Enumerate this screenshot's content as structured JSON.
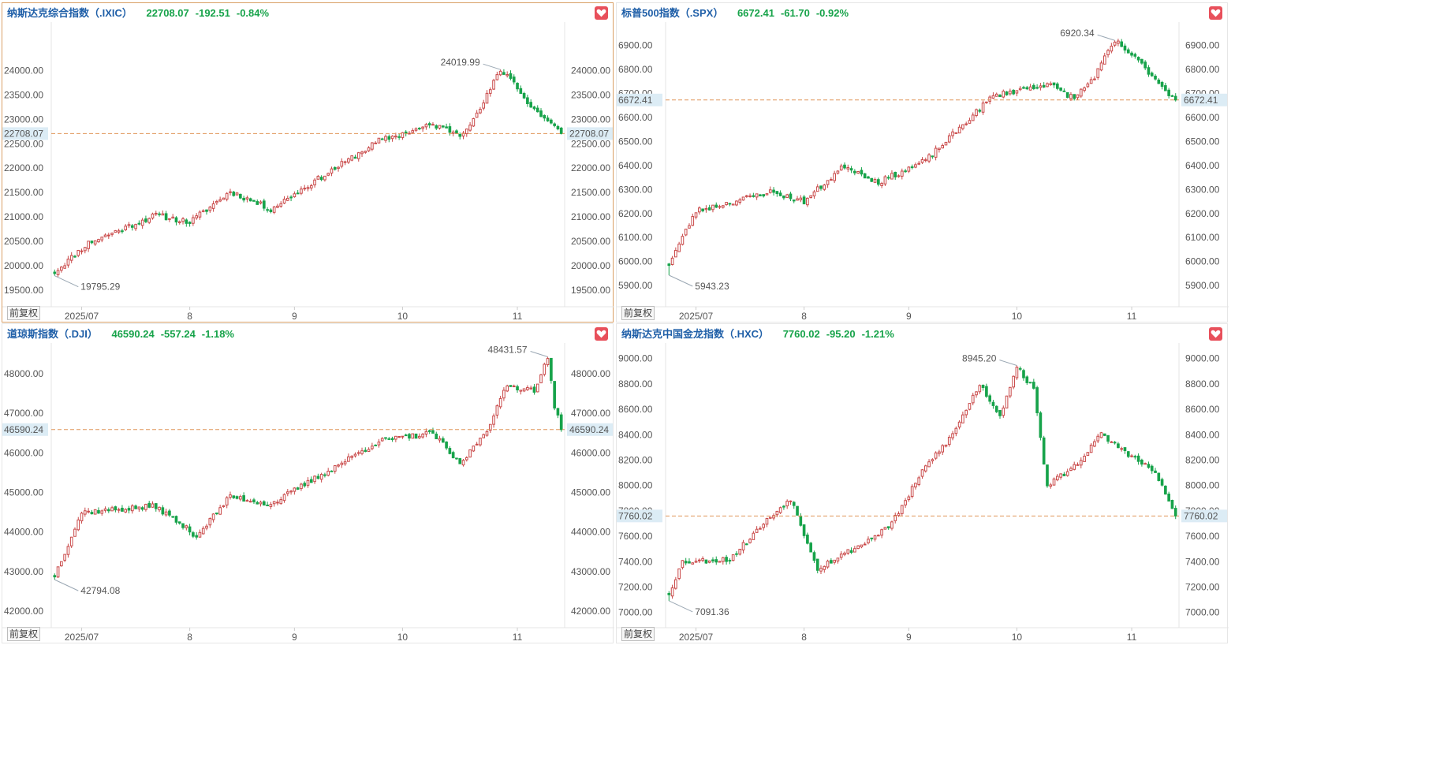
{
  "labels": {
    "restore_button": "前复权"
  },
  "colors": {
    "up": "#c94848",
    "down": "#17a34a",
    "header_name": "#1f5fa8",
    "header_values": "#17a34a",
    "last_line": "#e0965a",
    "last_tag_bg": "#dcecf5",
    "heart": "#e8505b"
  },
  "chart_data": [
    {
      "type": "candlestick",
      "name": "纳斯达克综合指数（.IXIC）",
      "last": "22708.07",
      "change": "-192.51",
      "change_pct": "-0.84%",
      "yticks": [
        "24000.00",
        "23500.00",
        "23000.00",
        "22500.00",
        "22000.00",
        "21500.00",
        "21000.00",
        "20500.00",
        "20000.00",
        "19500.00"
      ],
      "ylim": [
        19160,
        24960
      ],
      "xticks": [
        "2025/07",
        "8",
        "9",
        "10",
        "11"
      ],
      "xtick_idx": [
        8,
        40,
        71,
        103,
        137
      ],
      "high_label": "24019.99",
      "low_label": "19795.29",
      "start": 19870,
      "high": 24019.99,
      "low": 19795.29,
      "high_idx": 132,
      "low_idx": 0,
      "close": 22708.07,
      "waypoints": [
        [
          0,
          19870
        ],
        [
          10,
          20470
        ],
        [
          30,
          21040
        ],
        [
          40,
          20890
        ],
        [
          52,
          21520
        ],
        [
          64,
          21160
        ],
        [
          76,
          21690
        ],
        [
          96,
          22560
        ],
        [
          112,
          22890
        ],
        [
          120,
          22700
        ],
        [
          125,
          23080
        ],
        [
          132,
          24019.99
        ],
        [
          136,
          23780
        ],
        [
          140,
          23320
        ],
        [
          148,
          22850
        ],
        [
          150,
          22708.07
        ]
      ],
      "seed": 11
    },
    {
      "type": "candlestick",
      "name": "标普500指数（.SPX）",
      "last": "6672.41",
      "change": "-61.70",
      "change_pct": "-0.92%",
      "yticks": [
        "6900.00",
        "6800.00",
        "6700.00",
        "6600.00",
        "6500.00",
        "6400.00",
        "6300.00",
        "6200.00",
        "6100.00",
        "6000.00",
        "5900.00"
      ],
      "ylim": [
        5812,
        6990
      ],
      "xticks": [
        "2025/07",
        "8",
        "9",
        "10",
        "11"
      ],
      "xtick_idx": [
        8,
        40,
        71,
        103,
        137
      ],
      "high_label": "6920.34",
      "low_label": "5943.23",
      "start": 5990,
      "high": 6920.34,
      "low": 5943.23,
      "high_idx": 132,
      "low_idx": 0,
      "close": 6672.41,
      "waypoints": [
        [
          0,
          5990
        ],
        [
          8,
          6210
        ],
        [
          30,
          6290
        ],
        [
          40,
          6250
        ],
        [
          52,
          6400
        ],
        [
          62,
          6330
        ],
        [
          76,
          6420
        ],
        [
          96,
          6690
        ],
        [
          112,
          6740
        ],
        [
          120,
          6680
        ],
        [
          126,
          6770
        ],
        [
          132,
          6920.34
        ],
        [
          140,
          6820
        ],
        [
          148,
          6700
        ],
        [
          150,
          6672.41
        ]
      ],
      "seed": 23
    },
    {
      "type": "candlestick",
      "name": "道琼斯指数（.DJI）",
      "last": "46590.24",
      "change": "-557.24",
      "change_pct": "-1.18%",
      "yticks": [
        "48000.00",
        "47000.00",
        "46000.00",
        "45000.00",
        "44000.00",
        "43000.00",
        "42000.00"
      ],
      "ylim": [
        41580,
        48740
      ],
      "xticks": [
        "2025/07",
        "8",
        "9",
        "10",
        "11"
      ],
      "xtick_idx": [
        8,
        40,
        71,
        103,
        137
      ],
      "high_label": "48431.57",
      "low_label": "42794.08",
      "start": 42900,
      "high": 48431.57,
      "low": 42794.08,
      "high_idx": 146,
      "low_idx": 0,
      "close": 46590.24,
      "waypoints": [
        [
          0,
          42900
        ],
        [
          8,
          44500
        ],
        [
          30,
          44650
        ],
        [
          42,
          43900
        ],
        [
          52,
          44900
        ],
        [
          64,
          44700
        ],
        [
          76,
          45300
        ],
        [
          96,
          46300
        ],
        [
          112,
          46500
        ],
        [
          120,
          45700
        ],
        [
          128,
          46600
        ],
        [
          134,
          47700
        ],
        [
          142,
          47600
        ],
        [
          146,
          48431.57
        ],
        [
          148,
          47200
        ],
        [
          150,
          46590.24
        ]
      ],
      "seed": 37
    },
    {
      "type": "candlestick",
      "name": "纳斯达克中国金龙指数（.HXC）",
      "last": "7760.02",
      "change": "-95.20",
      "change_pct": "-1.21%",
      "yticks": [
        "9000.00",
        "8800.00",
        "8600.00",
        "8400.00",
        "8200.00",
        "8000.00",
        "7800.00",
        "7600.00",
        "7400.00",
        "7200.00",
        "7000.00"
      ],
      "ylim": [
        6880,
        9110
      ],
      "xticks": [
        "2025/07",
        "8",
        "9",
        "10",
        "11"
      ],
      "xtick_idx": [
        8,
        40,
        71,
        103,
        137
      ],
      "high_label": "8945.20",
      "low_label": "7091.36",
      "start": 7150,
      "high": 8945.2,
      "low": 7091.36,
      "high_idx": 103,
      "low_idx": 0,
      "close": 7760.02,
      "waypoints": [
        [
          0,
          7150
        ],
        [
          4,
          7400
        ],
        [
          18,
          7420
        ],
        [
          28,
          7700
        ],
        [
          36,
          7900
        ],
        [
          44,
          7350
        ],
        [
          58,
          7550
        ],
        [
          66,
          7700
        ],
        [
          76,
          8150
        ],
        [
          84,
          8400
        ],
        [
          92,
          8800
        ],
        [
          98,
          8550
        ],
        [
          103,
          8945.2
        ],
        [
          108,
          8750
        ],
        [
          112,
          8000
        ],
        [
          120,
          8150
        ],
        [
          128,
          8400
        ],
        [
          136,
          8250
        ],
        [
          144,
          8100
        ],
        [
          150,
          7760.02
        ]
      ],
      "seed": 53
    }
  ]
}
